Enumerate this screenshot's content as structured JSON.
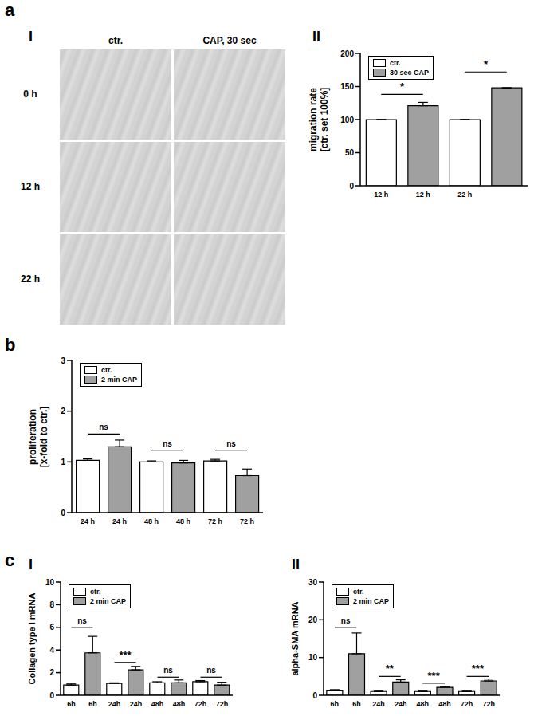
{
  "panel_letters": [
    "a",
    "b",
    "c"
  ],
  "image_panel": {
    "panel": "I",
    "columns": [
      "ctr.",
      "CAP, 30 sec"
    ],
    "rows": [
      "0 h",
      "12 h",
      "22 h"
    ]
  },
  "chart_data": [
    {
      "panel": "II",
      "type": "bar",
      "y_label": [
        "migration rate",
        "[ctr. set 100%]"
      ],
      "categories": [
        "12 h",
        "12 h",
        "22 h",
        null
      ],
      "series": [
        {
          "name": "ctr.",
          "color": "#ffffff",
          "values": [
            100,
            null,
            100,
            null
          ],
          "errors": [
            null,
            null,
            null,
            null
          ]
        },
        {
          "name": "30 sec CAP",
          "color": "#a0a0a0",
          "values": [
            null,
            121,
            null,
            148
          ],
          "errors": [
            null,
            5,
            null,
            null
          ]
        }
      ],
      "ylim": [
        0,
        200
      ],
      "yticks": [
        0,
        50,
        100,
        150,
        200
      ],
      "legend": "upper left",
      "annotations": [
        {
          "text": "*",
          "between": [
            0,
            1
          ],
          "y": 138
        },
        {
          "text": "*",
          "between": [
            2,
            3
          ],
          "y": 172
        }
      ]
    },
    {
      "type": "bar",
      "y_label": [
        "proliferation",
        "[x-fold to ctr.]"
      ],
      "categories": [
        "24 h",
        "24 h",
        "48 h",
        "48 h",
        "72 h",
        "72 h"
      ],
      "series": [
        {
          "name": "ctr.",
          "color": "#ffffff",
          "values": [
            1.03,
            null,
            1.0,
            null,
            1.02,
            null
          ],
          "errors": [
            0.03,
            null,
            0.02,
            null,
            0.03,
            null
          ]
        },
        {
          "name": "2 min CAP",
          "color": "#a0a0a0",
          "values": [
            null,
            1.3,
            null,
            0.98,
            null,
            0.73
          ],
          "errors": [
            null,
            0.13,
            null,
            0.05,
            null,
            0.13
          ]
        }
      ],
      "ylim": [
        0,
        3
      ],
      "yticks": [
        0,
        1,
        2,
        3
      ],
      "legend": "upper left",
      "annotations": [
        {
          "text": "ns",
          "between": [
            0,
            1
          ],
          "y": 1.55
        },
        {
          "text": "ns",
          "between": [
            2,
            3
          ],
          "y": 1.23
        },
        {
          "text": "ns",
          "between": [
            4,
            5
          ],
          "y": 1.23
        }
      ]
    },
    {
      "panel": "I",
      "type": "bar",
      "y_label": [
        "Collagen type I mRNA"
      ],
      "categories": [
        "6h",
        "6h",
        "24h",
        "24h",
        "48h",
        "48h",
        "72h",
        "72h"
      ],
      "series": [
        {
          "name": "ctr.",
          "color": "#ffffff",
          "values": [
            0.9,
            null,
            1.05,
            null,
            1.1,
            null,
            1.2,
            null
          ],
          "errors": [
            0.1,
            null,
            0.05,
            null,
            0.1,
            null,
            0.1,
            null
          ]
        },
        {
          "name": "2 min CAP",
          "color": "#a0a0a0",
          "values": [
            null,
            3.75,
            null,
            2.25,
            null,
            1.1,
            null,
            0.9
          ],
          "errors": [
            null,
            1.45,
            null,
            0.3,
            null,
            0.25,
            null,
            0.25
          ]
        }
      ],
      "ylim": [
        0,
        10
      ],
      "yticks": [
        0,
        2,
        4,
        6,
        8,
        10
      ],
      "legend": "upper left",
      "annotations": [
        {
          "text": "ns",
          "between": [
            0,
            1
          ],
          "y": 6.0
        },
        {
          "text": "***",
          "between": [
            2,
            3
          ],
          "y": 2.9
        },
        {
          "text": "ns",
          "between": [
            4,
            5
          ],
          "y": 1.6
        },
        {
          "text": "ns",
          "between": [
            6,
            7
          ],
          "y": 1.6
        }
      ]
    },
    {
      "panel": "II",
      "type": "bar",
      "y_label": [
        "alpha-SMA mRNA"
      ],
      "categories": [
        "6h",
        "6h",
        "24h",
        "24h",
        "48h",
        "48h",
        "72h",
        "72h"
      ],
      "series": [
        {
          "name": "ctr.",
          "color": "#ffffff",
          "values": [
            1.2,
            null,
            1.0,
            null,
            1.0,
            null,
            1.0,
            null
          ],
          "errors": [
            0.3,
            null,
            0.1,
            null,
            0.1,
            null,
            0.1,
            null
          ]
        },
        {
          "name": "2 min CAP",
          "color": "#a0a0a0",
          "values": [
            null,
            11,
            null,
            3.5,
            null,
            2.1,
            null,
            3.8
          ],
          "errors": [
            null,
            5.5,
            null,
            0.6,
            null,
            0.2,
            null,
            0.5
          ]
        }
      ],
      "ylim": [
        0,
        30
      ],
      "yticks": [
        0,
        10,
        20,
        30
      ],
      "legend": "upper left",
      "annotations": [
        {
          "text": "ns",
          "between": [
            0,
            1
          ],
          "y": 18
        },
        {
          "text": "**",
          "between": [
            2,
            3
          ],
          "y": 5
        },
        {
          "text": "***",
          "between": [
            4,
            5
          ],
          "y": 3.2
        },
        {
          "text": "***",
          "between": [
            6,
            7
          ],
          "y": 5
        }
      ]
    }
  ]
}
